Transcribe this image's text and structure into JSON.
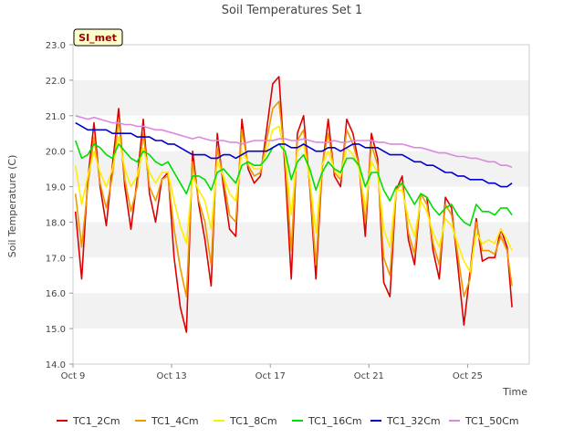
{
  "chart_data": {
    "type": "line",
    "title": "Soil Temperatures Set 1",
    "xlabel": "Time",
    "ylabel": "Soil Temperature (C)",
    "ylim": [
      14.0,
      23.0
    ],
    "xlim_days": [
      9,
      27.5
    ],
    "yticks": [
      "14.0",
      "15.0",
      "16.0",
      "17.0",
      "18.0",
      "19.0",
      "20.0",
      "21.0",
      "22.0",
      "23.0"
    ],
    "xticks": [
      {
        "day": 9,
        "label": "Oct 9"
      },
      {
        "day": 13,
        "label": "Oct 13"
      },
      {
        "day": 17,
        "label": "Oct 17"
      },
      {
        "day": 21,
        "label": "Oct 21"
      },
      {
        "day": 25,
        "label": "Oct 25"
      }
    ],
    "grid": "horizontal bands",
    "legend_position": "bottom",
    "annotation": "SI_met",
    "series": [
      {
        "name": "TC1_2Cm",
        "color": "#dd0000",
        "days": [
          9.1,
          9.35,
          9.6,
          9.85,
          10.1,
          10.35,
          10.6,
          10.85,
          11.1,
          11.35,
          11.6,
          11.85,
          12.1,
          12.35,
          12.6,
          12.85,
          13.1,
          13.35,
          13.6,
          13.85,
          14.1,
          14.35,
          14.6,
          14.85,
          15.1,
          15.35,
          15.6,
          15.85,
          16.1,
          16.35,
          16.6,
          16.85,
          17.1,
          17.35,
          17.6,
          17.85,
          18.1,
          18.35,
          18.6,
          18.85,
          19.1,
          19.35,
          19.6,
          19.85,
          20.1,
          20.35,
          20.6,
          20.85,
          21.1,
          21.35,
          21.6,
          21.85,
          22.1,
          22.35,
          22.6,
          22.85,
          23.1,
          23.35,
          23.6,
          23.85,
          24.1,
          24.35,
          24.6,
          24.85,
          25.1,
          25.35,
          25.6,
          25.85,
          26.1,
          26.35,
          26.6,
          26.8
        ],
        "values": [
          18.3,
          16.4,
          19.2,
          20.8,
          19.0,
          17.9,
          19.6,
          21.2,
          19.0,
          17.8,
          19.2,
          20.9,
          18.8,
          18.0,
          19.2,
          19.4,
          17.0,
          15.6,
          14.9,
          20.0,
          18.5,
          17.5,
          16.2,
          20.5,
          19.0,
          17.8,
          17.6,
          20.9,
          19.5,
          19.1,
          19.3,
          20.6,
          21.9,
          22.1,
          19.5,
          16.4,
          20.5,
          21.0,
          19.0,
          16.4,
          19.5,
          20.9,
          19.3,
          19.0,
          20.9,
          20.5,
          19.6,
          17.6,
          20.5,
          19.8,
          16.3,
          15.9,
          18.9,
          19.3,
          17.5,
          16.8,
          18.8,
          18.7,
          17.2,
          16.4,
          18.7,
          18.4,
          16.8,
          15.1,
          16.6,
          18.1,
          16.9,
          17.0,
          17.0,
          17.8,
          17.3,
          15.6
        ]
      },
      {
        "name": "TC1_4Cm",
        "color": "#ee9900",
        "days": [
          9.1,
          9.35,
          9.6,
          9.85,
          10.1,
          10.35,
          10.6,
          10.85,
          11.1,
          11.35,
          11.6,
          11.85,
          12.1,
          12.35,
          12.6,
          12.85,
          13.1,
          13.35,
          13.6,
          13.85,
          14.1,
          14.35,
          14.6,
          14.85,
          15.1,
          15.35,
          15.6,
          15.85,
          16.1,
          16.35,
          16.6,
          16.85,
          17.1,
          17.35,
          17.6,
          17.85,
          18.1,
          18.35,
          18.6,
          18.85,
          19.1,
          19.35,
          19.6,
          19.85,
          20.1,
          20.35,
          20.6,
          20.85,
          21.1,
          21.35,
          21.6,
          21.85,
          22.1,
          22.35,
          22.6,
          22.85,
          23.1,
          23.35,
          23.6,
          23.85,
          24.1,
          24.35,
          24.6,
          24.85,
          25.1,
          25.35,
          25.6,
          25.85,
          26.1,
          26.35,
          26.6,
          26.8
        ],
        "values": [
          18.8,
          17.3,
          19.0,
          20.4,
          19.1,
          18.4,
          19.3,
          20.9,
          19.2,
          18.3,
          19.0,
          20.5,
          19.0,
          18.6,
          19.2,
          19.3,
          17.8,
          16.7,
          15.9,
          19.7,
          18.6,
          18.0,
          16.8,
          20.1,
          19.2,
          18.2,
          18.0,
          20.6,
          19.6,
          19.3,
          19.4,
          20.3,
          21.2,
          21.4,
          19.8,
          17.2,
          20.3,
          20.6,
          19.1,
          16.8,
          19.6,
          20.5,
          19.4,
          19.2,
          20.6,
          20.2,
          19.6,
          18.0,
          20.2,
          19.6,
          17.0,
          16.5,
          18.9,
          19.1,
          17.7,
          17.1,
          18.8,
          18.5,
          17.4,
          16.8,
          18.5,
          18.2,
          17.1,
          15.9,
          16.4,
          18.0,
          17.2,
          17.2,
          17.1,
          17.6,
          17.2,
          16.2
        ]
      },
      {
        "name": "TC1_8Cm",
        "color": "#ffee00",
        "days": [
          9.1,
          9.35,
          9.6,
          9.85,
          10.1,
          10.35,
          10.6,
          10.85,
          11.1,
          11.35,
          11.6,
          11.85,
          12.1,
          12.35,
          12.6,
          12.85,
          13.1,
          13.35,
          13.6,
          13.85,
          14.1,
          14.35,
          14.6,
          14.85,
          15.1,
          15.35,
          15.6,
          15.85,
          16.1,
          16.35,
          16.6,
          16.85,
          17.1,
          17.35,
          17.6,
          17.85,
          18.1,
          18.35,
          18.6,
          18.85,
          19.1,
          19.35,
          19.6,
          19.85,
          20.1,
          20.35,
          20.6,
          20.85,
          21.1,
          21.35,
          21.6,
          21.85,
          22.1,
          22.35,
          22.6,
          22.85,
          23.1,
          23.35,
          23.6,
          23.85,
          24.1,
          24.35,
          24.6,
          24.85,
          25.1,
          25.35,
          25.6,
          25.85,
          26.1,
          26.35,
          26.6,
          26.8
        ],
        "values": [
          19.6,
          18.5,
          19.3,
          20.0,
          19.4,
          19.0,
          19.5,
          20.4,
          19.5,
          19.0,
          19.3,
          20.1,
          19.4,
          19.1,
          19.4,
          19.4,
          18.6,
          17.9,
          17.4,
          19.3,
          18.9,
          18.6,
          17.8,
          19.7,
          19.3,
          18.8,
          18.6,
          20.0,
          19.7,
          19.5,
          19.5,
          20.0,
          20.6,
          20.7,
          19.9,
          18.2,
          20.0,
          20.2,
          19.2,
          17.7,
          19.6,
          20.0,
          19.5,
          19.3,
          20.1,
          19.9,
          19.5,
          18.4,
          19.7,
          19.4,
          17.8,
          17.3,
          18.9,
          18.9,
          18.1,
          17.6,
          18.6,
          18.3,
          17.7,
          17.3,
          18.1,
          17.9,
          17.4,
          16.9,
          16.6,
          17.7,
          17.4,
          17.5,
          17.4,
          17.8,
          17.5,
          17.2
        ]
      },
      {
        "name": "TC1_16Cm",
        "color": "#00dd00",
        "days": [
          9.1,
          9.35,
          9.6,
          9.85,
          10.1,
          10.35,
          10.6,
          10.85,
          11.1,
          11.35,
          11.6,
          11.85,
          12.1,
          12.35,
          12.6,
          12.85,
          13.1,
          13.35,
          13.6,
          13.85,
          14.1,
          14.35,
          14.6,
          14.85,
          15.1,
          15.35,
          15.6,
          15.85,
          16.1,
          16.35,
          16.6,
          16.85,
          17.1,
          17.35,
          17.6,
          17.85,
          18.1,
          18.35,
          18.6,
          18.85,
          19.1,
          19.35,
          19.6,
          19.85,
          20.1,
          20.35,
          20.6,
          20.85,
          21.1,
          21.35,
          21.6,
          21.85,
          22.1,
          22.35,
          22.6,
          22.85,
          23.1,
          23.35,
          23.6,
          23.85,
          24.1,
          24.35,
          24.6,
          24.85,
          25.1,
          25.35,
          25.6,
          25.85,
          26.1,
          26.35,
          26.6,
          26.8
        ],
        "values": [
          20.3,
          19.8,
          19.9,
          20.2,
          20.1,
          19.9,
          19.8,
          20.2,
          20.0,
          19.8,
          19.7,
          20.0,
          19.9,
          19.7,
          19.6,
          19.7,
          19.4,
          19.1,
          18.8,
          19.3,
          19.3,
          19.2,
          18.9,
          19.4,
          19.5,
          19.3,
          19.1,
          19.6,
          19.7,
          19.6,
          19.6,
          19.8,
          20.1,
          20.2,
          20.0,
          19.2,
          19.7,
          19.9,
          19.5,
          18.9,
          19.4,
          19.7,
          19.5,
          19.4,
          19.8,
          19.8,
          19.6,
          19.0,
          19.4,
          19.4,
          18.9,
          18.6,
          19.0,
          19.1,
          18.8,
          18.5,
          18.8,
          18.7,
          18.4,
          18.2,
          18.4,
          18.5,
          18.2,
          18.0,
          17.9,
          18.5,
          18.3,
          18.3,
          18.2,
          18.4,
          18.4,
          18.2
        ]
      },
      {
        "name": "TC1_32Cm",
        "color": "#0000cc",
        "days": [
          9.1,
          9.35,
          9.6,
          9.85,
          10.1,
          10.35,
          10.6,
          10.85,
          11.1,
          11.35,
          11.6,
          11.85,
          12.1,
          12.35,
          12.6,
          12.85,
          13.1,
          13.35,
          13.6,
          13.85,
          14.1,
          14.35,
          14.6,
          14.85,
          15.1,
          15.35,
          15.6,
          15.85,
          16.1,
          16.35,
          16.6,
          16.85,
          17.1,
          17.35,
          17.6,
          17.85,
          18.1,
          18.35,
          18.6,
          18.85,
          19.1,
          19.35,
          19.6,
          19.85,
          20.1,
          20.35,
          20.6,
          20.85,
          21.1,
          21.35,
          21.6,
          21.85,
          22.1,
          22.35,
          22.6,
          22.85,
          23.1,
          23.35,
          23.6,
          23.85,
          24.1,
          24.35,
          24.6,
          24.85,
          25.1,
          25.35,
          25.6,
          25.85,
          26.1,
          26.35,
          26.6,
          26.8
        ],
        "values": [
          20.8,
          20.7,
          20.6,
          20.6,
          20.6,
          20.6,
          20.5,
          20.5,
          20.5,
          20.5,
          20.4,
          20.4,
          20.4,
          20.3,
          20.3,
          20.2,
          20.2,
          20.1,
          20.0,
          19.9,
          19.9,
          19.9,
          19.8,
          19.8,
          19.9,
          19.9,
          19.8,
          19.9,
          20.0,
          20.0,
          20.0,
          20.0,
          20.1,
          20.2,
          20.2,
          20.1,
          20.1,
          20.2,
          20.1,
          20.0,
          20.0,
          20.1,
          20.1,
          20.0,
          20.1,
          20.2,
          20.2,
          20.1,
          20.1,
          20.1,
          20.0,
          19.9,
          19.9,
          19.9,
          19.8,
          19.7,
          19.7,
          19.6,
          19.6,
          19.5,
          19.4,
          19.4,
          19.3,
          19.3,
          19.2,
          19.2,
          19.2,
          19.1,
          19.1,
          19.0,
          19.0,
          19.1
        ]
      },
      {
        "name": "TC1_50Cm",
        "color": "#dd88dd",
        "days": [
          9.1,
          9.35,
          9.6,
          9.85,
          10.1,
          10.35,
          10.6,
          10.85,
          11.1,
          11.35,
          11.6,
          11.85,
          12.1,
          12.35,
          12.6,
          12.85,
          13.1,
          13.35,
          13.6,
          13.85,
          14.1,
          14.35,
          14.6,
          14.85,
          15.1,
          15.35,
          15.6,
          15.85,
          16.1,
          16.35,
          16.6,
          16.85,
          17.1,
          17.35,
          17.6,
          17.85,
          18.1,
          18.35,
          18.6,
          18.85,
          19.1,
          19.35,
          19.6,
          19.85,
          20.1,
          20.35,
          20.6,
          20.85,
          21.1,
          21.35,
          21.6,
          21.85,
          22.1,
          22.35,
          22.6,
          22.85,
          23.1,
          23.35,
          23.6,
          23.85,
          24.1,
          24.35,
          24.6,
          24.85,
          25.1,
          25.35,
          25.6,
          25.85,
          26.1,
          26.35,
          26.6,
          26.8
        ],
        "values": [
          21.0,
          20.95,
          20.9,
          20.95,
          20.9,
          20.85,
          20.8,
          20.8,
          20.75,
          20.75,
          20.7,
          20.7,
          20.65,
          20.6,
          20.6,
          20.55,
          20.5,
          20.45,
          20.4,
          20.35,
          20.4,
          20.35,
          20.3,
          20.3,
          20.3,
          20.25,
          20.25,
          20.2,
          20.25,
          20.3,
          20.3,
          20.3,
          20.3,
          20.35,
          20.35,
          20.3,
          20.3,
          20.35,
          20.3,
          20.25,
          20.25,
          20.25,
          20.3,
          20.25,
          20.25,
          20.3,
          20.3,
          20.3,
          20.3,
          20.25,
          20.25,
          20.2,
          20.2,
          20.2,
          20.15,
          20.1,
          20.1,
          20.05,
          20.0,
          19.95,
          19.95,
          19.9,
          19.85,
          19.85,
          19.8,
          19.8,
          19.75,
          19.7,
          19.7,
          19.6,
          19.6,
          19.55
        ]
      }
    ]
  }
}
